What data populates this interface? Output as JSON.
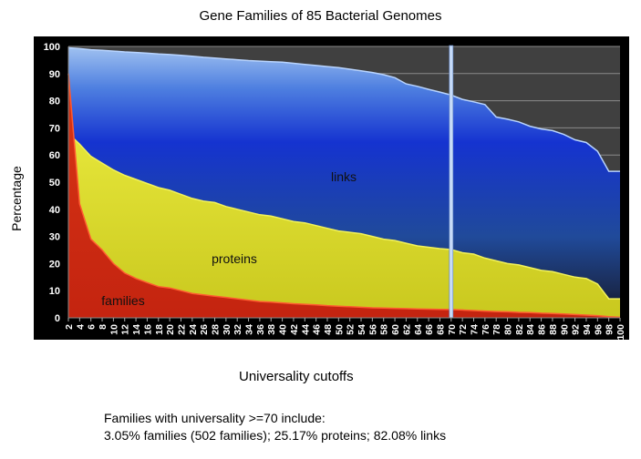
{
  "chart_data": {
    "type": "area",
    "stacked": false,
    "title": "Gene Families of 85 Bacterial Genomes",
    "xlabel": "Universality cutoffs",
    "ylabel": "Percentage",
    "ylim": [
      0,
      100
    ],
    "yticks": [
      0,
      10,
      20,
      30,
      40,
      50,
      60,
      70,
      80,
      90,
      100
    ],
    "x": [
      2,
      4,
      6,
      8,
      10,
      12,
      14,
      16,
      18,
      20,
      22,
      24,
      26,
      28,
      30,
      32,
      34,
      36,
      38,
      40,
      42,
      44,
      46,
      48,
      50,
      52,
      54,
      56,
      58,
      60,
      62,
      64,
      66,
      68,
      70,
      72,
      74,
      76,
      78,
      80,
      82,
      84,
      86,
      88,
      90,
      92,
      94,
      96,
      98,
      100
    ],
    "series": [
      {
        "name": "links",
        "color": "#1a3ccc",
        "values": [
          99.5,
          99.2,
          98.8,
          98.6,
          98.3,
          98,
          97.8,
          97.5,
          97.2,
          97,
          96.7,
          96.4,
          96,
          95.7,
          95.4,
          95.1,
          94.8,
          94.6,
          94.4,
          94.2,
          93.8,
          93.4,
          93,
          92.6,
          92.2,
          91.6,
          91,
          90.4,
          89.6,
          88.5,
          86.2,
          85.3,
          84.2,
          83.2,
          82.08,
          80.5,
          79.6,
          78.6,
          74,
          73.2,
          72.2,
          70.6,
          69.6,
          69,
          67.6,
          65.6,
          64.6,
          61.4,
          54,
          54
        ]
      },
      {
        "name": "proteins",
        "color": "#d4d52a",
        "values": [
          68,
          64,
          59.5,
          57,
          54.5,
          52.5,
          51,
          49.5,
          48,
          47,
          45.5,
          44,
          43,
          42.5,
          41,
          40,
          39,
          38,
          37.5,
          36.5,
          35.5,
          35,
          34,
          33,
          32,
          31.5,
          31,
          30,
          29,
          28.5,
          27.5,
          26.5,
          26,
          25.5,
          25.17,
          24,
          23.5,
          22,
          21,
          20,
          19.5,
          18.5,
          17.5,
          17,
          16,
          15,
          14.5,
          12.5,
          7,
          7
        ]
      },
      {
        "name": "families",
        "color": "#d02a10",
        "values": [
          90,
          42,
          29,
          25,
          20,
          16.5,
          14.5,
          13,
          11.5,
          11,
          10,
          9,
          8.5,
          8,
          7.5,
          7,
          6.5,
          6,
          5.8,
          5.5,
          5.2,
          5,
          4.8,
          4.5,
          4.3,
          4.1,
          3.9,
          3.7,
          3.6,
          3.5,
          3.4,
          3.3,
          3.2,
          3.1,
          3.05,
          2.9,
          2.7,
          2.5,
          2.3,
          2.2,
          2,
          1.9,
          1.7,
          1.6,
          1.4,
          1.2,
          1,
          0.8,
          0.4,
          0.2
        ]
      }
    ],
    "annotations": {
      "vertical_line_x": 70,
      "series_labels": [
        "links",
        "proteins",
        "families"
      ]
    },
    "grid": true
  },
  "notes": {
    "line1": "Families  with universality >=70 include:",
    "line2": "3.05% families (502 families);  25.17% proteins; 82.08% links"
  }
}
